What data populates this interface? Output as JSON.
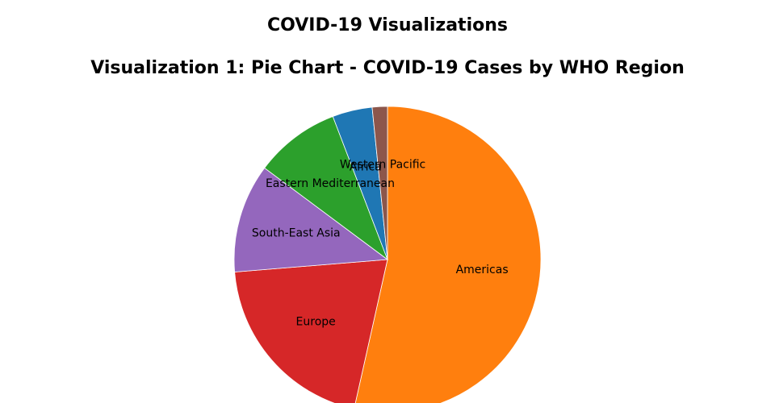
{
  "page": {
    "title": "COVID-19 Visualizations"
  },
  "chart_data": {
    "type": "pie",
    "title": "Visualization 1: Pie Chart - COVID-19 Cases by WHO Region",
    "direction": "clockwise",
    "start_angle_deg": 0,
    "slices": [
      {
        "label": "Americas",
        "value": 53.5,
        "color": "#ff7f0e"
      },
      {
        "label": "Europe",
        "value": 20.2,
        "color": "#d62728"
      },
      {
        "label": "South-East Asia",
        "value": 11.5,
        "color": "#9467bd"
      },
      {
        "label": "Eastern Mediterranean",
        "value": 9.0,
        "color": "#2ca02c"
      },
      {
        "label": "Africa",
        "value": 4.2,
        "color": "#1f77b4"
      },
      {
        "label": "Western Pacific",
        "value": 1.6,
        "color": "#8c564b"
      }
    ]
  }
}
